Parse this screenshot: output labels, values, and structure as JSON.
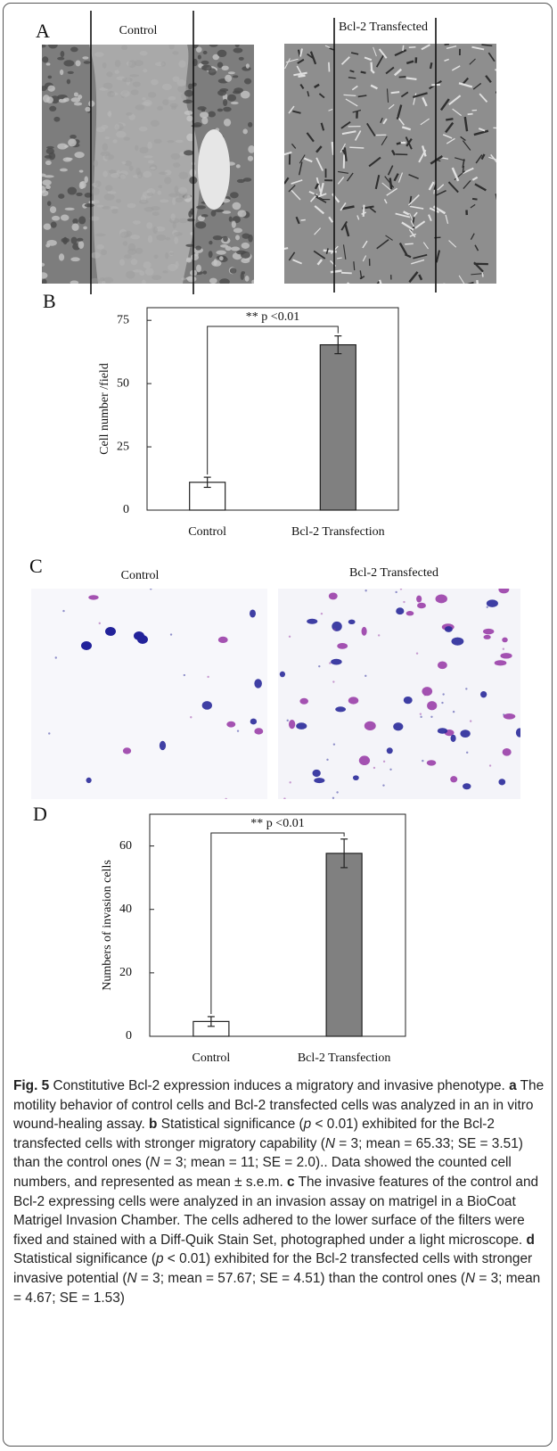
{
  "image_panels": [
    {
      "label": "A",
      "titles": [
        "Control",
        "Bcl-2 Transfected"
      ]
    },
    {
      "label": "C",
      "titles": [
        "Control",
        "Bcl-2 Transfected"
      ]
    }
  ],
  "chart_data": [
    {
      "type": "bar",
      "panel": "B",
      "ylabel": "Cell number /field",
      "categories": [
        "Control",
        "Bcl-2 Transfection"
      ],
      "values": [
        11,
        65.33
      ],
      "errors": [
        2,
        3.51
      ],
      "colors": [
        "#ffffff",
        "#808080"
      ],
      "ylim": [
        0,
        80
      ],
      "yticks": [
        0,
        25,
        50,
        75
      ],
      "annotation": "** p <0.01"
    },
    {
      "type": "bar",
      "panel": "D",
      "ylabel": "Numbers of invasion cells",
      "categories": [
        "Control",
        "Bcl-2 Transfection"
      ],
      "values": [
        4.67,
        57.67
      ],
      "errors": [
        1.53,
        4.51
      ],
      "colors": [
        "#ffffff",
        "#808080"
      ],
      "ylim": [
        0,
        70
      ],
      "yticks": [
        0,
        20,
        40,
        60
      ],
      "annotation": "** p <0.01"
    }
  ],
  "caption": [
    {
      "style": "bold",
      "text": "Fig. 5"
    },
    {
      "style": "plain",
      "text": " Constitutive Bcl-2 expression induces a migratory and invasive phenotype. "
    },
    {
      "style": "bold",
      "text": "a"
    },
    {
      "style": "plain",
      "text": " The motility behavior of control cells and Bcl-2 transfected cells was analyzed in an in vitro wound-healing assay. "
    },
    {
      "style": "bold",
      "text": "b"
    },
    {
      "style": "plain",
      "text": " Statistical significance ("
    },
    {
      "style": "italic",
      "text": "p"
    },
    {
      "style": "plain",
      "text": " < 0.01) exhibited for the Bcl-2 transfected cells with stronger migratory capability ("
    },
    {
      "style": "italic",
      "text": "N"
    },
    {
      "style": "plain",
      "text": " = 3; mean = 65.33; SE = 3.51) than the control ones ("
    },
    {
      "style": "italic",
      "text": "N"
    },
    {
      "style": "plain",
      "text": " = 3; mean = 11; SE = 2.0).. Data showed the counted cell numbers, and represented as mean ± s.e.m. "
    },
    {
      "style": "bold",
      "text": "c"
    },
    {
      "style": "plain",
      "text": " The invasive features of the control and Bcl-2 expressing cells were analyzed in an invasion assay on matrigel in a BioCoat Matrigel Invasion Chamber. The cells adhered to the lower surface of the filters were fixed and stained with a Diff-Quik Stain Set, photographed under a light microscope. "
    },
    {
      "style": "bold",
      "text": "d"
    },
    {
      "style": "plain",
      "text": " Statistical significance ("
    },
    {
      "style": "italic",
      "text": "p"
    },
    {
      "style": "plain",
      "text": " < 0.01) exhibited for the Bcl-2 transfected cells with stronger invasive potential ("
    },
    {
      "style": "italic",
      "text": "N"
    },
    {
      "style": "plain",
      "text": " = 3; mean = 57.67; SE = 4.51) than the control ones ("
    },
    {
      "style": "italic",
      "text": "N"
    },
    {
      "style": "plain",
      "text": " = 3; mean = 4.67; SE = 1.53)"
    }
  ]
}
